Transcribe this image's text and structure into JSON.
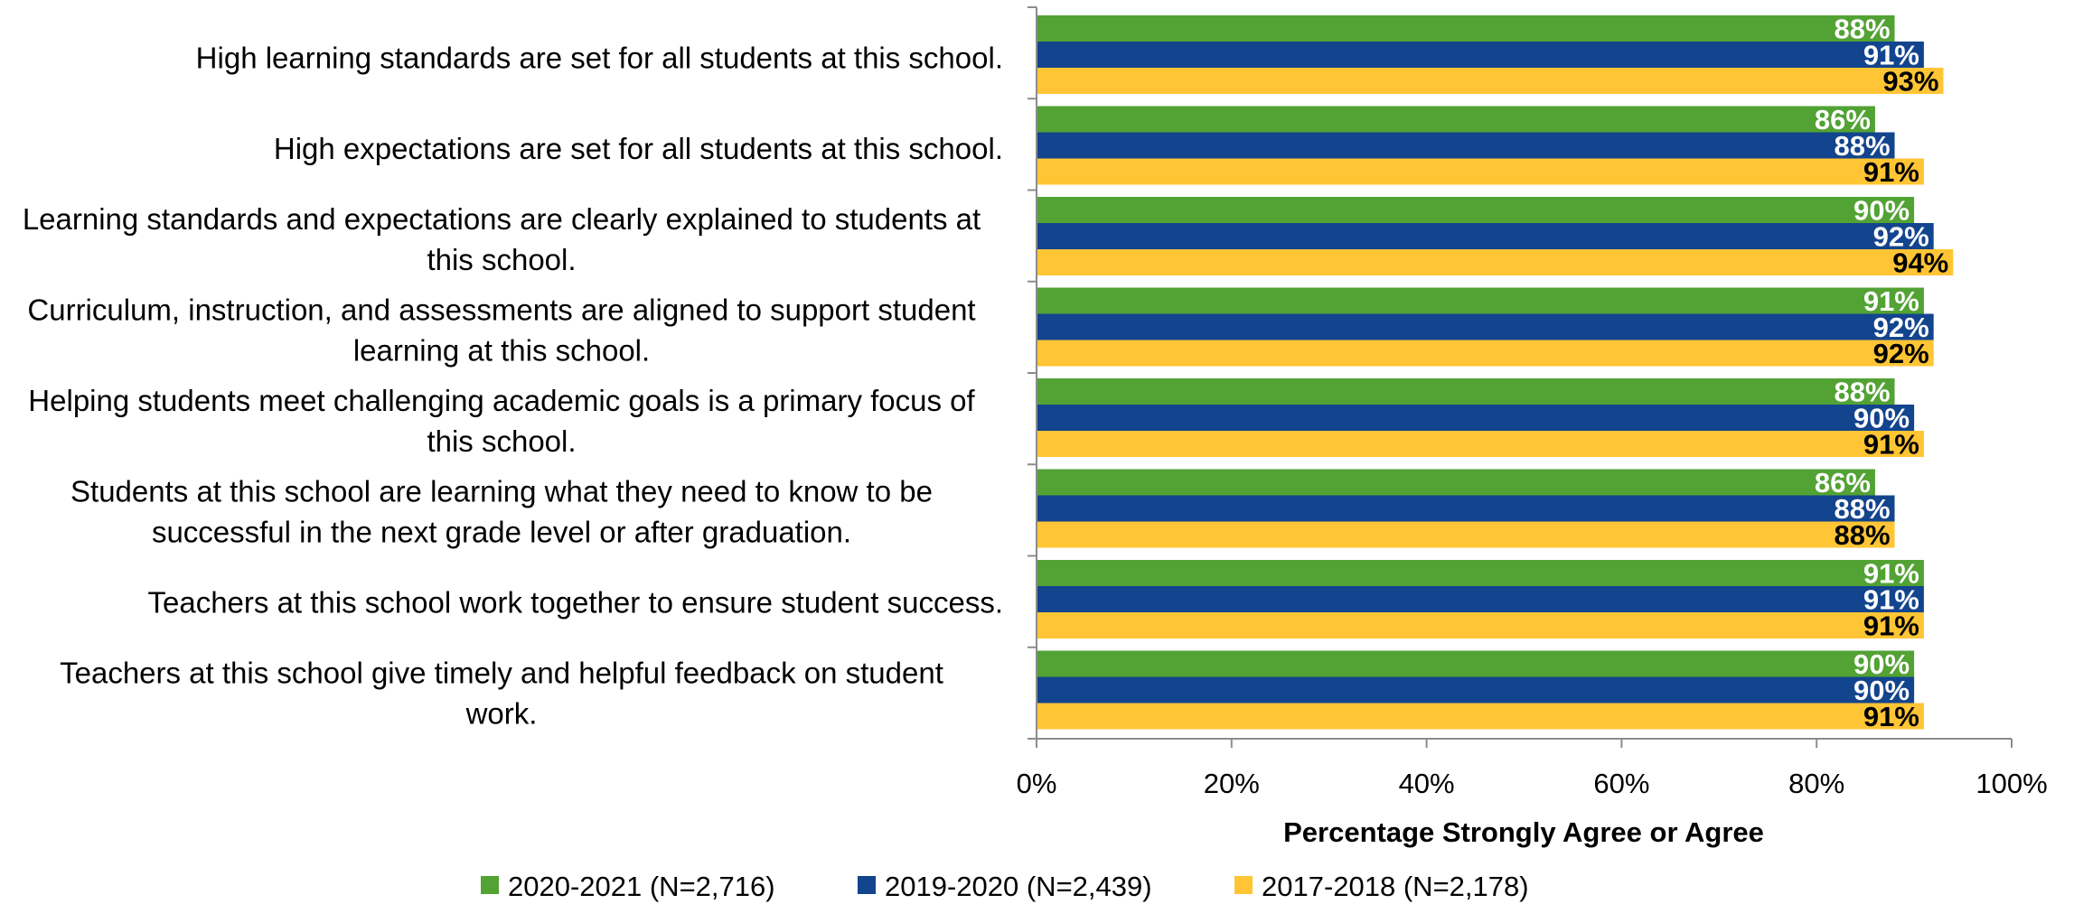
{
  "chart_data": {
    "type": "bar",
    "orientation": "horizontal",
    "title": "",
    "xlabel": "Percentage Strongly Agree or Agree",
    "ylabel": "",
    "xlim": [
      0,
      100
    ],
    "x_ticks": [
      "0%",
      "20%",
      "40%",
      "60%",
      "80%",
      "100%"
    ],
    "grid": false,
    "legend_position": "bottom",
    "categories": [
      [
        "High learning standards are set for all students at this school."
      ],
      [
        "High expectations are set for all students at this school."
      ],
      [
        "Learning standards and expectations are clearly explained to students at",
        "this school."
      ],
      [
        "Curriculum, instruction, and assessments are aligned to support student",
        "learning at this school."
      ],
      [
        "Helping students meet challenging academic goals is a primary focus of",
        "this school."
      ],
      [
        "Students at this school are learning what they need to know to be",
        "successful in the next grade level or after graduation."
      ],
      [
        "Teachers at this school work together to ensure student success."
      ],
      [
        "Teachers at this school give timely and helpful feedback on student",
        "work."
      ]
    ],
    "series": [
      {
        "name": "2020-2021 (N=2,716)",
        "color": "#52A234",
        "label_color": "#ffffff",
        "values": [
          88,
          86,
          90,
          91,
          88,
          86,
          91,
          90
        ]
      },
      {
        "name": "2019-2020 (N=2,439)",
        "color": "#13448E",
        "label_color": "#ffffff",
        "values": [
          91,
          88,
          92,
          92,
          90,
          88,
          91,
          90
        ]
      },
      {
        "name": "2017-2018 (N=2,178)",
        "color": "#FFC535",
        "label_color": "#000000",
        "values": [
          93,
          91,
          94,
          92,
          91,
          88,
          91,
          91
        ]
      }
    ]
  }
}
